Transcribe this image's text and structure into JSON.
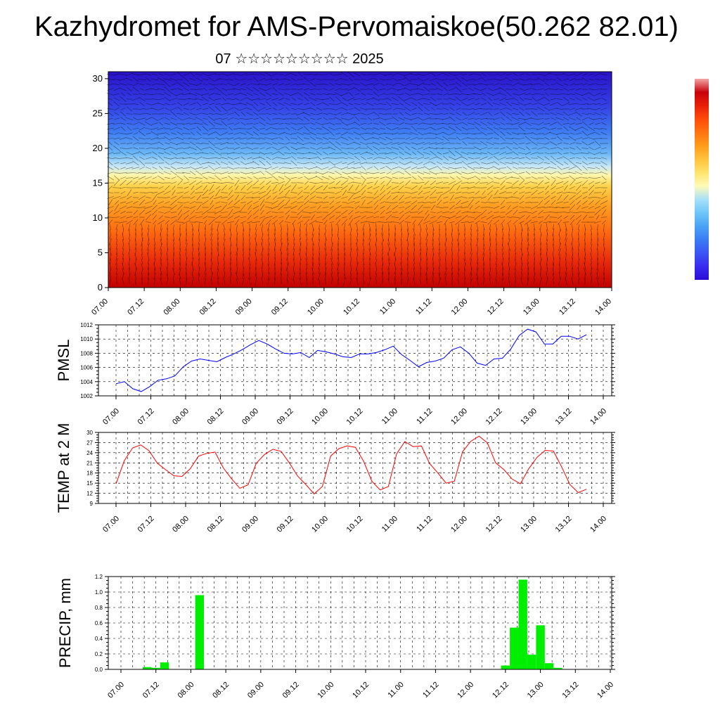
{
  "title": "Kazhydromet for AMS-Pervomaiskoe(50.262 82.01)",
  "subtitle": "07 ☆☆☆☆☆☆☆☆☆ 2025",
  "colorbar": [
    "#2a0dd6",
    "#3a2cf0",
    "#3b55f4",
    "#3a7cf5",
    "#4aa3f6",
    "#6ec6f8",
    "#a8e0fa",
    "#fffbb8",
    "#ffe36e",
    "#ffc23d",
    "#ff9c1a",
    "#ff7410",
    "#ff4a0a",
    "#e8200a",
    "#c8000a",
    "#f3a6a6"
  ],
  "chart_data": [
    {
      "type": "heatmap",
      "description": "Wind-vector cross-section (altitude vs time), temperature-coloured shading with wind barbs",
      "x_ticks": [
        "07.00",
        "07.12",
        "08.00",
        "08.12",
        "09.00",
        "09.12",
        "10.00",
        "10.12",
        "11.00",
        "11.12",
        "12.00",
        "12.12",
        "13.00",
        "13.12",
        "14.00"
      ],
      "y_ticks": [
        "0",
        "5",
        "10",
        "15",
        "20",
        "25",
        "30"
      ],
      "ylim": [
        0,
        31
      ]
    },
    {
      "type": "line",
      "ylabel": "PMSL",
      "ylim": [
        1002,
        1012
      ],
      "y_ticks": [
        "1002",
        "1004",
        "1006",
        "1008",
        "1010",
        "1012"
      ],
      "x_ticks": [
        "07.00",
        "07.12",
        "08.00",
        "08.12",
        "09.00",
        "09.12",
        "10.00",
        "10.12",
        "11.00",
        "11.12",
        "12.00",
        "12.12",
        "13.00",
        "13.12",
        "14.00"
      ],
      "series": [
        {
          "color": "#0000ff",
          "values": [
            1003.7,
            1004.0,
            1003.0,
            1002.6,
            1003.3,
            1004.2,
            1004.4,
            1004.8,
            1006.1,
            1006.9,
            1007.2,
            1007.0,
            1006.8,
            1007.4,
            1007.9,
            1008.5,
            1009.2,
            1009.8,
            1009.3,
            1008.6,
            1008.0,
            1007.9,
            1008.1,
            1007.4,
            1008.4,
            1008.2,
            1007.9,
            1007.5,
            1007.4,
            1007.9,
            1007.9,
            1008.1,
            1008.5,
            1009.0,
            1007.8,
            1007.0,
            1006.1,
            1006.7,
            1006.9,
            1007.3,
            1008.5,
            1008.9,
            1008.0,
            1006.6,
            1006.3,
            1007.2,
            1007.3,
            1008.6,
            1010.5,
            1011.4,
            1011.0,
            1009.3,
            1009.3,
            1010.4,
            1010.4,
            1010.0,
            1010.6
          ]
        }
      ]
    },
    {
      "type": "line",
      "ylabel": "TEMP at 2 M",
      "ylim": [
        9,
        30
      ],
      "y_ticks": [
        "9",
        "12",
        "15",
        "18",
        "21",
        "24",
        "27",
        "30"
      ],
      "x_ticks": [
        "07.00",
        "07.12",
        "08.00",
        "08.12",
        "09.00",
        "09.12",
        "10.00",
        "10.12",
        "11.00",
        "11.12",
        "12.00",
        "12.12",
        "13.00",
        "13.12",
        "14.00"
      ],
      "series": [
        {
          "color": "#ff0000",
          "values": [
            14.8,
            21.6,
            25.4,
            26.3,
            24.6,
            20.9,
            19.0,
            17.2,
            17.0,
            19.3,
            23.0,
            23.8,
            24.2,
            19.5,
            16.3,
            13.5,
            14.5,
            20.9,
            23.5,
            25.0,
            24.4,
            21.0,
            17.1,
            14.6,
            11.8,
            14.0,
            23.0,
            25.2,
            26.0,
            25.6,
            21.5,
            15.6,
            13.0,
            14.0,
            23.7,
            27.3,
            25.8,
            26.0,
            20.8,
            18.0,
            15.0,
            15.6,
            24.3,
            27.4,
            28.9,
            26.9,
            21.0,
            19.0,
            16.2,
            14.8,
            19.2,
            22.6,
            24.7,
            24.5,
            19.8,
            14.6,
            12.2,
            13.2
          ]
        }
      ]
    },
    {
      "type": "bar",
      "ylabel": "PRECIP, mm",
      "ylim": [
        0,
        1.2
      ],
      "y_ticks": [
        "0.0",
        "0.2",
        "0.4",
        "0.6",
        "0.8",
        "1.0",
        "1.2"
      ],
      "x_ticks": [
        "07.00",
        "07.12",
        "08.00",
        "08.12",
        "09.00",
        "09.12",
        "10.00",
        "10.12",
        "11.00",
        "11.12",
        "12.00",
        "12.12",
        "13.00",
        "13.12",
        "14.00"
      ],
      "color": "#00ee00",
      "values": [
        0,
        0,
        0,
        0.03,
        0.02,
        0.09,
        0,
        0,
        0,
        0.96,
        0,
        0,
        0,
        0,
        0,
        0,
        0,
        0,
        0,
        0,
        0,
        0,
        0,
        0,
        0,
        0,
        0,
        0,
        0,
        0,
        0,
        0,
        0,
        0,
        0,
        0,
        0,
        0,
        0,
        0,
        0,
        0,
        0,
        0,
        0.05,
        0.54,
        1.16,
        0.19,
        0.57,
        0.08,
        0.02,
        0,
        0,
        0,
        0,
        0,
        0
      ]
    }
  ]
}
